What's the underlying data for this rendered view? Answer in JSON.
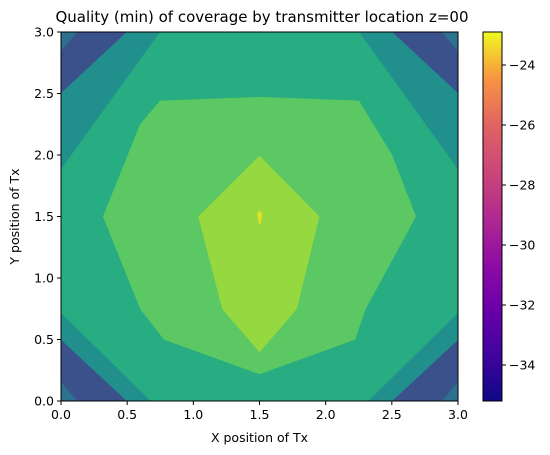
{
  "chart_data": {
    "type": "heatmap",
    "title": "Quality (min) of coverage by transmitter location z=00",
    "xlabel": "X position of Tx",
    "ylabel": "Y position of Tx",
    "xlim": [
      0.0,
      3.0
    ],
    "ylim": [
      0.0,
      3.0
    ],
    "x_ticks": [
      "0.0",
      "0.5",
      "1.0",
      "1.5",
      "2.0",
      "2.5",
      "3.0"
    ],
    "y_ticks": [
      "0.0",
      "0.5",
      "1.0",
      "1.5",
      "2.0",
      "2.5",
      "3.0"
    ],
    "colorbar": {
      "colormap": "plasma",
      "range": [
        -35.2,
        -22.9
      ],
      "ticks": [
        "-24",
        "-26",
        "-28",
        "-30",
        "-32",
        "-34"
      ],
      "tick_values": [
        -24,
        -26,
        -28,
        -30,
        -32,
        -34
      ]
    },
    "contour_colors": [
      "#3b518b",
      "#2c718e",
      "#21908d",
      "#27ad81",
      "#5cc863",
      "#95d840",
      "#e0e325"
    ],
    "regions": [
      {
        "level": 2,
        "color": "#21908d",
        "points": [
          [
            0,
            2.5
          ],
          [
            0,
            0.5
          ],
          [
            0.5,
            0
          ],
          [
            2.5,
            0
          ],
          [
            3,
            0.5
          ],
          [
            3,
            2.5
          ],
          [
            2.5,
            3
          ],
          [
            0.5,
            3
          ]
        ]
      },
      {
        "level": 1,
        "color": "#2c718e",
        "points": [
          [
            0,
            3
          ],
          [
            0,
            2.85
          ],
          [
            0.12,
            3
          ]
        ]
      },
      {
        "level": 1,
        "color": "#2c718e",
        "points": [
          [
            3,
            3
          ],
          [
            2.88,
            3
          ],
          [
            3,
            2.85
          ]
        ]
      },
      {
        "level": 1,
        "color": "#2c718e",
        "points": [
          [
            0,
            0
          ],
          [
            0,
            0.15
          ],
          [
            0.12,
            0
          ]
        ]
      },
      {
        "level": 1,
        "color": "#2c718e",
        "points": [
          [
            3,
            0
          ],
          [
            2.88,
            0
          ],
          [
            3,
            0.15
          ]
        ]
      },
      {
        "level": 3,
        "color": "#27ad81",
        "points": [
          [
            0,
            1.88
          ],
          [
            0,
            0.72
          ],
          [
            0.68,
            0
          ],
          [
            2.32,
            0
          ],
          [
            3,
            0.72
          ],
          [
            3,
            1.88
          ],
          [
            2.25,
            3
          ],
          [
            0.75,
            3
          ]
        ]
      },
      {
        "level": 4,
        "color": "#5cc863",
        "points": [
          [
            0.75,
            2.44
          ],
          [
            1.5,
            2.47
          ],
          [
            2.25,
            2.44
          ],
          [
            2.5,
            2.0
          ],
          [
            2.68,
            1.5
          ],
          [
            2.3,
            0.75
          ],
          [
            2.22,
            0.5
          ],
          [
            1.5,
            0.22
          ],
          [
            0.78,
            0.5
          ],
          [
            0.6,
            0.75
          ],
          [
            0.32,
            1.5
          ],
          [
            0.6,
            2.25
          ]
        ]
      },
      {
        "level": 5,
        "color": "#95d840",
        "points": [
          [
            1.5,
            1.99
          ],
          [
            1.95,
            1.5
          ],
          [
            1.78,
            0.75
          ],
          [
            1.5,
            0.4
          ],
          [
            1.22,
            0.75
          ],
          [
            1.04,
            1.5
          ]
        ]
      },
      {
        "level": 6,
        "color": "#e0e325",
        "points": [
          [
            1.485,
            1.52
          ],
          [
            1.5,
            1.545
          ],
          [
            1.518,
            1.52
          ],
          [
            1.505,
            1.44
          ],
          [
            1.498,
            1.44
          ]
        ]
      }
    ]
  }
}
